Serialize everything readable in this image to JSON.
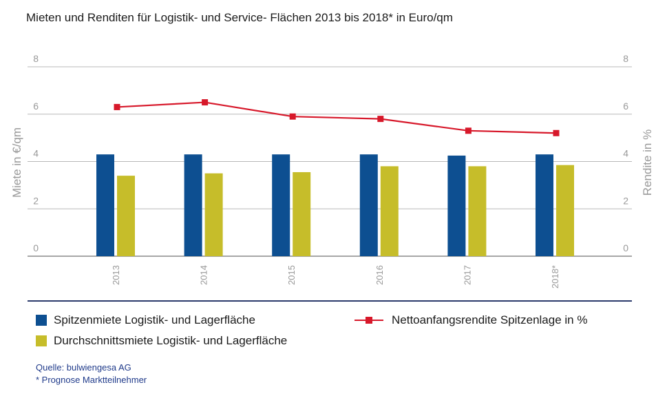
{
  "chart_data": {
    "type": "bar",
    "title": "Mieten und Renditen für Logistik- und Service- Flächen 2013 bis 2018* in Euro/qm",
    "categories": [
      "2013",
      "2014",
      "2015",
      "2016",
      "2017",
      "2018*"
    ],
    "ylabel_left": "Miete in €/qm",
    "ylabel_right": "Rendite in %",
    "ylim": [
      0,
      8
    ],
    "yticks": [
      "0",
      "2",
      "4",
      "6",
      "8"
    ],
    "grid": true,
    "legend_position": "bottom",
    "series": [
      {
        "name": "Spitzenmiete Logistik- und Lagerfläche",
        "kind": "bar",
        "axis": "left",
        "color": "#0d4f91",
        "values": [
          4.3,
          4.3,
          4.3,
          4.3,
          4.25,
          4.3
        ]
      },
      {
        "name": "Durchschnittsmiete Logistik- und Lagerfläche",
        "kind": "bar",
        "axis": "left",
        "color": "#c6bd2a",
        "values": [
          3.4,
          3.5,
          3.55,
          3.8,
          3.8,
          3.85
        ]
      },
      {
        "name": "Nettoanfangsrendite Spitzenlage in %",
        "kind": "line",
        "axis": "right",
        "color": "#d7182a",
        "values": [
          6.3,
          6.5,
          5.9,
          5.8,
          5.3,
          5.2
        ]
      }
    ]
  },
  "footnotes": {
    "source": "Quelle: bulwiengesa AG",
    "note": "* Prognose Marktteilnehmer"
  }
}
